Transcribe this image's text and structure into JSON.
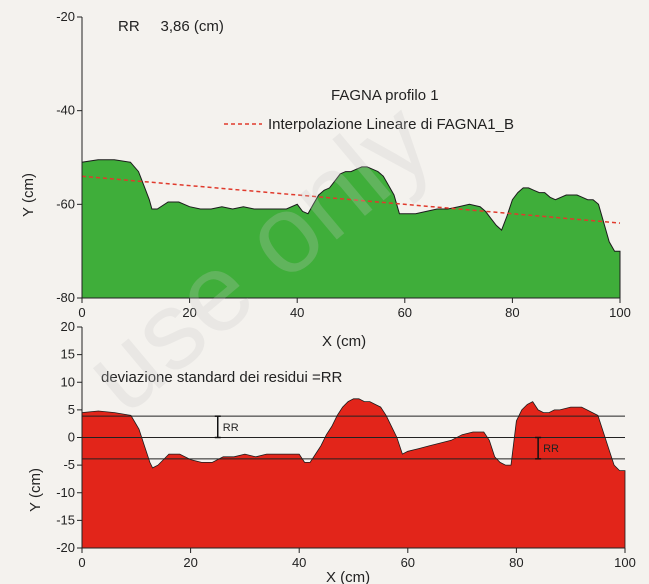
{
  "chart_data": [
    {
      "type": "area",
      "annotation": "RR     3,86 (cm)",
      "legend": {
        "title": "FAGNA profilo 1",
        "entries": [
          {
            "name": "Interpolazione Lineare di FAGNA1_B",
            "style": "dashed",
            "color": "#e03a2c"
          }
        ],
        "placement": "top-right"
      },
      "xlabel": "X (cm)",
      "ylabel": "Y (cm)",
      "xlim": [
        0,
        100
      ],
      "ylim": [
        -80,
        -20
      ],
      "xticks": [
        0,
        20,
        40,
        60,
        80,
        100
      ],
      "yticks": [
        -20,
        -40,
        -60,
        -80
      ],
      "grid": false,
      "fill_color": "#3fae3a",
      "series": [
        {
          "values_x": [
            0,
            3,
            6,
            9,
            10.5,
            11.5,
            12.5,
            13,
            14,
            16,
            18,
            20,
            22,
            24,
            26,
            28,
            30,
            32,
            34,
            36,
            38,
            40,
            41,
            42,
            43,
            44,
            45,
            46,
            47,
            48,
            49,
            50,
            51,
            52,
            53,
            54,
            55,
            56,
            57,
            58,
            59,
            60,
            62,
            64,
            66,
            68,
            70,
            72,
            74,
            75,
            76,
            77,
            78,
            79,
            80,
            81,
            82,
            83,
            84,
            85,
            86,
            87,
            88,
            90,
            92,
            93,
            94,
            95,
            96,
            97,
            98,
            99,
            100
          ],
          "values_y": [
            -51,
            -50.5,
            -50.5,
            -51,
            -53,
            -56,
            -59,
            -61,
            -61,
            -59.5,
            -59.5,
            -60.5,
            -61,
            -61,
            -60.5,
            -61,
            -60.5,
            -61,
            -61,
            -61,
            -61,
            -60,
            -61.5,
            -62,
            -60,
            -58,
            -57,
            -56.5,
            -55,
            -53.5,
            -53,
            -53,
            -52.5,
            -52,
            -52,
            -52.5,
            -53,
            -54,
            -56,
            -58,
            -62,
            -62,
            -62,
            -61.5,
            -61,
            -61,
            -60.5,
            -60,
            -60.5,
            -61.5,
            -63,
            -64.5,
            -65.5,
            -62.5,
            -59,
            -57.5,
            -56.5,
            -56.5,
            -57,
            -57.5,
            -57.5,
            -58.5,
            -59,
            -58,
            -58,
            -58.5,
            -59,
            -59,
            -60,
            -64,
            -68,
            -70,
            -70
          ]
        }
      ],
      "trend_line": {
        "x": [
          0,
          100
        ],
        "y": [
          -54,
          -64
        ]
      }
    },
    {
      "type": "area",
      "annotation": "deviazione standard dei residui =RR",
      "xlabel": "X (cm)",
      "ylabel": "Y (cm)",
      "xlim": [
        0,
        100
      ],
      "ylim": [
        -20,
        20
      ],
      "xticks": [
        0,
        20,
        40,
        60,
        80,
        100
      ],
      "yticks": [
        20,
        15,
        10,
        5,
        0,
        -5,
        -10,
        -15,
        -20
      ],
      "grid": false,
      "fill_color": "#e2251a",
      "hlines": [
        3.86,
        0,
        -3.86
      ],
      "rr_markers": [
        {
          "label": "RR",
          "x": 25,
          "from": 0,
          "to": 3.86
        },
        {
          "label": "RR",
          "x": 84,
          "from": -3.86,
          "to": 0
        }
      ],
      "series": [
        {
          "values_x": [
            0,
            3,
            6,
            9,
            10.5,
            11.5,
            12.5,
            13,
            14,
            16,
            18,
            20,
            22,
            24,
            26,
            28,
            30,
            32,
            34,
            36,
            38,
            40,
            41,
            42,
            43,
            44,
            45,
            46,
            47,
            48,
            49,
            50,
            51,
            52,
            53,
            54,
            55,
            56,
            57,
            58,
            59,
            60,
            62,
            64,
            66,
            68,
            70,
            72,
            74,
            75,
            76,
            77,
            78,
            79,
            80,
            81,
            82,
            83,
            84,
            85,
            86,
            87,
            88,
            90,
            92,
            93,
            94,
            95,
            96,
            97,
            98,
            99,
            100
          ],
          "values_y": [
            4.5,
            4.8,
            4.5,
            4,
            1.5,
            -1.5,
            -4.5,
            -5.5,
            -5,
            -3,
            -3,
            -4,
            -4.5,
            -4.5,
            -3.5,
            -3.5,
            -3,
            -3.5,
            -3,
            -3,
            -3,
            -3,
            -4.5,
            -4.5,
            -3,
            -1.5,
            0.5,
            2,
            4,
            5.5,
            6.5,
            7,
            7,
            6.5,
            6.5,
            6,
            5.5,
            4,
            2,
            0,
            -3,
            -2.5,
            -2,
            -1.5,
            -1,
            -0.5,
            0.5,
            1,
            1,
            -0.5,
            -3.5,
            -4.5,
            -5,
            -5,
            3,
            5,
            6,
            6.5,
            5,
            4.5,
            4.5,
            5,
            5,
            5.5,
            5.5,
            5,
            4.5,
            4,
            1,
            -2,
            -5,
            -6,
            -6
          ]
        }
      ]
    }
  ],
  "watermark": "use only"
}
